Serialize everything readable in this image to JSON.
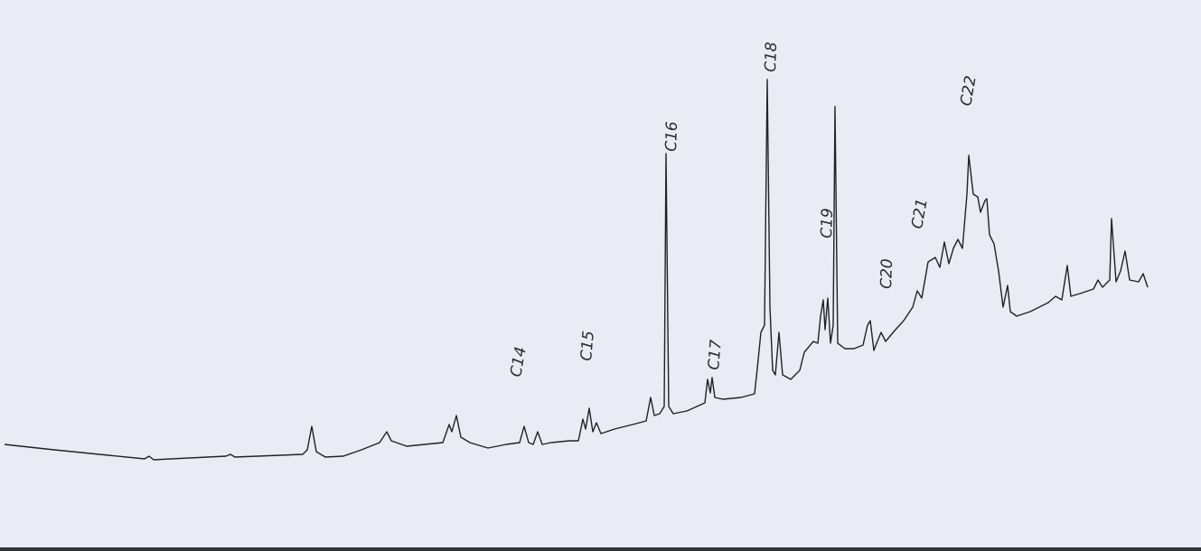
{
  "peaks": [
    {
      "label": "C14"
    },
    {
      "label": "C15"
    },
    {
      "label": "C16"
    },
    {
      "label": "C17"
    },
    {
      "label": "C18"
    },
    {
      "label": "C19"
    },
    {
      "label": "C20"
    },
    {
      "label": "C21"
    },
    {
      "label": "C22"
    }
  ]
}
